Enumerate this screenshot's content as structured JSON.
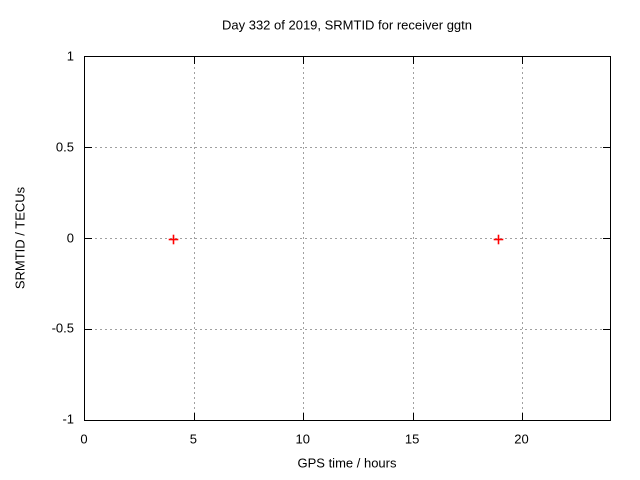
{
  "chart_data": {
    "type": "scatter",
    "title": "Day 332 of 2019, SRMTID for receiver ggtn",
    "xlabel": "GPS time / hours",
    "ylabel": "SRMTID / TECUs",
    "xlim": [
      0,
      24
    ],
    "ylim": [
      -1,
      1
    ],
    "xticks": [
      {
        "value": 0,
        "label": "0"
      },
      {
        "value": 5,
        "label": "5"
      },
      {
        "value": 10,
        "label": "10"
      },
      {
        "value": 15,
        "label": "15"
      },
      {
        "value": 20,
        "label": "20"
      }
    ],
    "yticks": [
      {
        "value": -1,
        "label": "-1"
      },
      {
        "value": -0.5,
        "label": "-0.5"
      },
      {
        "value": 0,
        "label": "0"
      },
      {
        "value": 0.5,
        "label": "0.5"
      },
      {
        "value": 1,
        "label": "1"
      }
    ],
    "grid": true,
    "legend": "none",
    "series": [
      {
        "name": "SRMTID",
        "marker": "plus",
        "color": "#ff0000",
        "points": [
          {
            "x": 4.0,
            "y": 0
          },
          {
            "x": 18.9,
            "y": 0
          }
        ]
      }
    ]
  },
  "colors": {
    "background": "#ffffff",
    "border": "#000000",
    "grid": "#a0a0a0",
    "text": "#000000",
    "marker": "#ff0000"
  }
}
